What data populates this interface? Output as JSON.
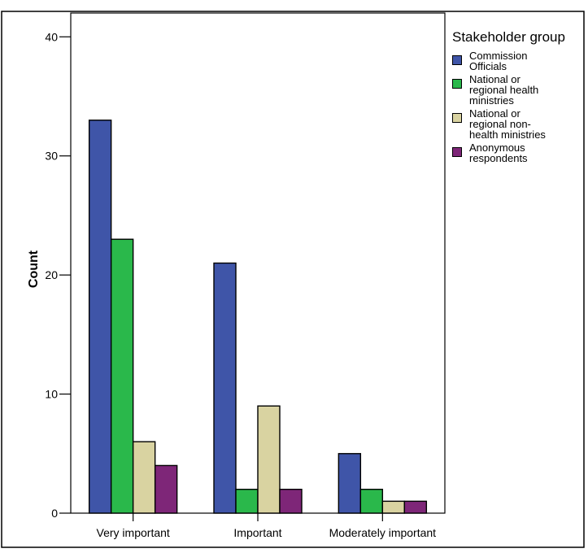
{
  "chart_data": {
    "type": "bar",
    "title": "",
    "xlabel": "",
    "ylabel": "Count",
    "ylim": [
      0,
      42
    ],
    "yticks": [
      0,
      10,
      20,
      30,
      40
    ],
    "categories": [
      "Very important",
      "Important",
      "Moderately important"
    ],
    "legend_title": "Stakeholder group",
    "legend_position": "right",
    "grid": false,
    "series": [
      {
        "name": "Commission\nOfficials",
        "color": "#3f55a8",
        "values": [
          33,
          21,
          5
        ]
      },
      {
        "name": "National or\nregional health\nministries",
        "color": "#2ab84b",
        "values": [
          23,
          2,
          2
        ]
      },
      {
        "name": "National or\nregional non-\nhealth ministries",
        "color": "#d9d3a1",
        "values": [
          6,
          9,
          1
        ]
      },
      {
        "name": "Anonymous\nrespondents",
        "color": "#7e2678",
        "values": [
          4,
          2,
          1
        ]
      }
    ]
  }
}
